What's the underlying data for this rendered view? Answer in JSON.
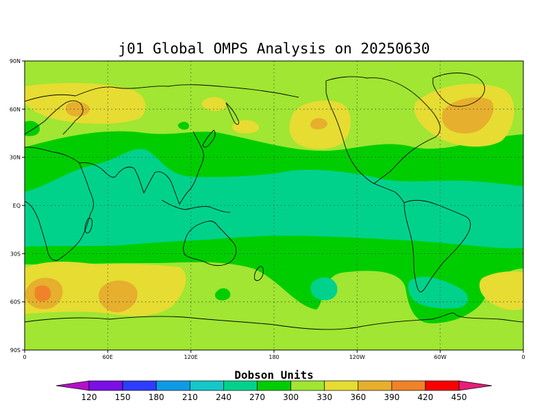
{
  "title": "j01 Global OMPS Analysis on 20250630",
  "map": {
    "lat_labels": [
      "90N",
      "60N",
      "30N",
      "EQ",
      "30S",
      "60S",
      "90S"
    ],
    "lon_labels": [
      "0",
      "60E",
      "120E",
      "180",
      "120W",
      "60W",
      "0"
    ],
    "lon_range": [
      0,
      360
    ],
    "lat_range": [
      -90,
      90
    ],
    "grid": "dotted"
  },
  "colorbar": {
    "title": "Dobson Units",
    "labels": [
      "120",
      "150",
      "180",
      "210",
      "240",
      "270",
      "300",
      "330",
      "360",
      "390",
      "420",
      "450"
    ],
    "colors": {
      "below_120": "#b40fc8",
      "120_150": "#7a0fe6",
      "150_180": "#2e3cff",
      "180_210": "#0f9ae6",
      "210_240": "#14c8c8",
      "240_270": "#00d28c",
      "270_300": "#00cd00",
      "300_330": "#a0e632",
      "330_360": "#e6dc32",
      "360_390": "#e6af2d",
      "390_420": "#f08228",
      "420_450": "#fa0000",
      "above_450": "#e61e78"
    }
  }
}
